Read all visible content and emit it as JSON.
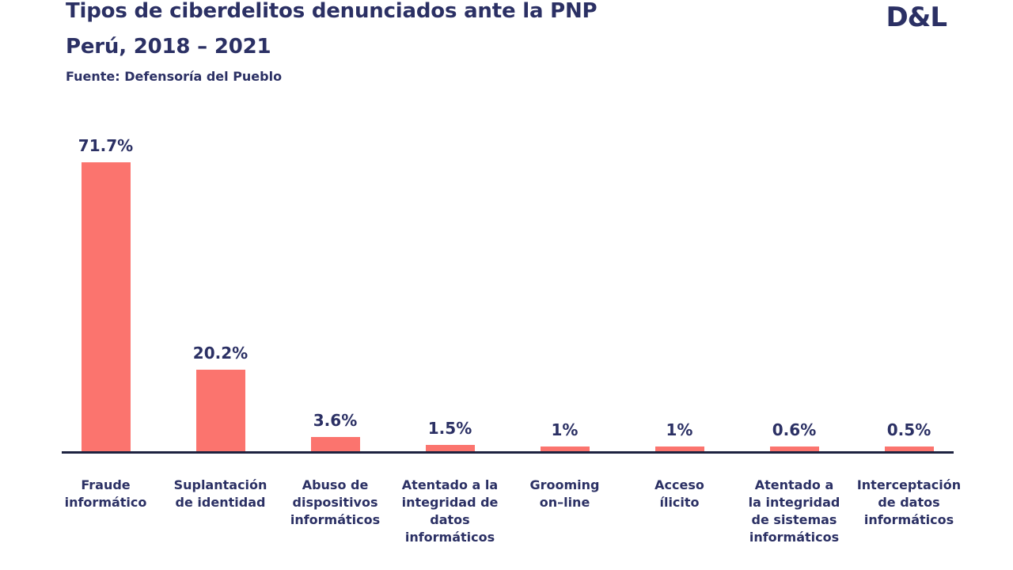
{
  "header": {
    "title": "Tipos de ciberdelitos denunciados ante la PNP",
    "subtitle": "Perú, 2018 – 2021",
    "source": "Fuente: Defensoría del Pueblo",
    "logo": "D&L"
  },
  "colors": {
    "text_navy": "#2B3064",
    "axis": "#1D2240",
    "bar": "#FB746E",
    "background": "#FFFFFF"
  },
  "chart_data": {
    "type": "bar",
    "title": "Tipos de ciberdelitos denunciados ante la PNP",
    "subtitle": "Perú, 2018 – 2021",
    "source": "Fuente: Defensoría del Pueblo",
    "categories": [
      "Fraude informático",
      "Suplantación de identidad",
      "Abuso de dispositivos informáticos",
      "Atentado a la integridad de datos informáticos",
      "Grooming on–line",
      "Acceso ílicito",
      "Atentado a la integridad de sistemas informáticos",
      "Interceptación de datos informáticos"
    ],
    "category_lines": [
      [
        "Fraude",
        "informático"
      ],
      [
        "Suplantación",
        "de identidad"
      ],
      [
        "Abuso de",
        "dispositivos",
        "informáticos"
      ],
      [
        "Atentado a la",
        "integridad de",
        "datos",
        "informáticos"
      ],
      [
        "Grooming",
        "on–line"
      ],
      [
        "Acceso",
        "ílicito"
      ],
      [
        "Atentado a",
        "la integridad",
        "de sistemas",
        "informáticos"
      ],
      [
        "Interceptación",
        "de datos",
        "informáticos"
      ]
    ],
    "values": [
      71.7,
      20.2,
      3.6,
      1.5,
      1,
      1,
      0.6,
      0.5
    ],
    "value_labels": [
      "71.7%",
      "20.2%",
      "3.6%",
      "1.5%",
      "1%",
      "1%",
      "0.6%",
      "0.5%"
    ],
    "unit": "%",
    "ylim": [
      0,
      75
    ],
    "grid": false,
    "legend": false,
    "xlabel": "",
    "ylabel": ""
  }
}
